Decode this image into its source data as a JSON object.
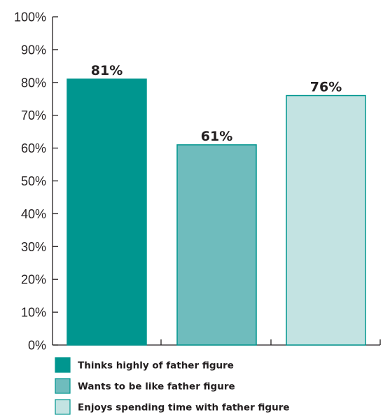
{
  "chart_data": {
    "type": "bar",
    "categories": [
      "Thinks highly of father figure",
      "Wants to be like father figure",
      "Enjoys spending time with father figure"
    ],
    "values": [
      81,
      61,
      76
    ],
    "data_labels": [
      "81%",
      "61%",
      "76%"
    ],
    "colors": [
      "#00968f",
      "#6fbcbd",
      "#c3e3e2"
    ],
    "bar_border_color": "#00968f",
    "ylim": [
      0,
      100
    ],
    "y_ticks": [
      {
        "value": 0,
        "label": "0%"
      },
      {
        "value": 10,
        "label": "10%"
      },
      {
        "value": 20,
        "label": "20%"
      },
      {
        "value": 30,
        "label": "30%"
      },
      {
        "value": 40,
        "label": "40%"
      },
      {
        "value": 50,
        "label": "50%"
      },
      {
        "value": 60,
        "label": "60%"
      },
      {
        "value": 70,
        "label": "70%"
      },
      {
        "value": 80,
        "label": "80%"
      },
      {
        "value": 90,
        "label": "90%"
      },
      {
        "value": 100,
        "label": "100%"
      }
    ],
    "title": "",
    "xlabel": "",
    "ylabel": "",
    "grid": false,
    "legend_position": "bottom-left"
  }
}
